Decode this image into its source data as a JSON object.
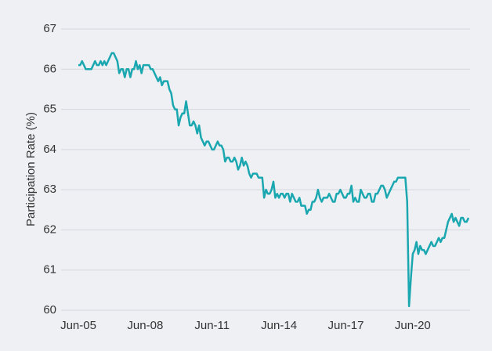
{
  "chart_data": {
    "type": "line",
    "ylabel": "Participation Rate (%)",
    "categories": [
      "Jun-05",
      null,
      null,
      null,
      null,
      null,
      null,
      null,
      null,
      null,
      null,
      null,
      null,
      null,
      null,
      null,
      null,
      null,
      null,
      null,
      null,
      null,
      null,
      null,
      null,
      null,
      null,
      null,
      null,
      null,
      null,
      null,
      null,
      null,
      null,
      null,
      "Jun-08",
      null,
      null,
      null,
      null,
      null,
      null,
      null,
      null,
      null,
      null,
      null,
      null,
      null,
      null,
      null,
      null,
      null,
      null,
      null,
      null,
      null,
      null,
      null,
      null,
      null,
      null,
      null,
      null,
      null,
      null,
      null,
      null,
      null,
      null,
      null,
      "Jun-11",
      null,
      null,
      null,
      null,
      null,
      null,
      null,
      null,
      null,
      null,
      null,
      null,
      null,
      null,
      null,
      null,
      null,
      null,
      null,
      null,
      null,
      null,
      null,
      null,
      null,
      null,
      null,
      null,
      null,
      null,
      null,
      null,
      null,
      null,
      null,
      "Jun-14",
      null,
      null,
      null,
      null,
      null,
      null,
      null,
      null,
      null,
      null,
      null,
      null,
      null,
      null,
      null,
      null,
      null,
      null,
      null,
      null,
      null,
      null,
      null,
      null,
      null,
      null,
      null,
      null,
      null,
      null,
      null,
      null,
      null,
      null,
      null,
      "Jun-17",
      null,
      null,
      null,
      null,
      null,
      null,
      null,
      null,
      null,
      null,
      null,
      null,
      null,
      null,
      null,
      null,
      null,
      null,
      null,
      null,
      null,
      null,
      null,
      null,
      null,
      null,
      null,
      null,
      null,
      null,
      null,
      null,
      null,
      null,
      null,
      "Jun-20",
      null,
      null,
      null,
      null,
      null,
      null,
      null,
      null,
      null,
      null,
      null,
      null,
      null,
      null,
      null,
      null,
      null,
      null,
      null,
      null,
      null,
      null,
      null,
      null,
      null,
      null,
      null,
      null,
      null,
      null
    ],
    "series": [
      {
        "color": "#1aa7b0",
        "values": [
          66.1,
          66.1,
          66.2,
          66.1,
          66.0,
          66.0,
          66.0,
          66.0,
          66.1,
          66.2,
          66.1,
          66.1,
          66.2,
          66.1,
          66.2,
          66.1,
          66.2,
          66.3,
          66.4,
          66.4,
          66.3,
          66.2,
          65.9,
          66.0,
          66.0,
          65.8,
          66.0,
          66.0,
          65.8,
          66.0,
          66.0,
          66.2,
          66.0,
          66.1,
          65.9,
          66.1,
          66.1,
          66.1,
          66.1,
          66.0,
          66.0,
          65.9,
          65.8,
          65.7,
          65.8,
          65.6,
          65.7,
          65.7,
          65.7,
          65.5,
          65.4,
          65.1,
          65.0,
          65.0,
          64.6,
          64.8,
          64.9,
          64.9,
          65.2,
          64.9,
          64.6,
          64.6,
          64.7,
          64.6,
          64.4,
          64.6,
          64.3,
          64.2,
          64.1,
          64.2,
          64.2,
          64.1,
          64.0,
          64.0,
          64.1,
          64.2,
          64.1,
          64.1,
          64.0,
          63.7,
          63.8,
          63.8,
          63.7,
          63.7,
          63.8,
          63.7,
          63.5,
          63.6,
          63.8,
          63.6,
          63.7,
          63.6,
          63.4,
          63.3,
          63.4,
          63.4,
          63.4,
          63.3,
          63.3,
          63.3,
          62.8,
          63.0,
          62.9,
          62.9,
          63.0,
          63.2,
          62.8,
          62.9,
          62.8,
          62.9,
          62.9,
          62.8,
          62.9,
          62.9,
          62.7,
          62.9,
          62.8,
          62.7,
          62.7,
          62.8,
          62.6,
          62.6,
          62.6,
          62.4,
          62.5,
          62.5,
          62.7,
          62.7,
          62.8,
          63.0,
          62.8,
          62.7,
          62.8,
          62.8,
          62.8,
          62.9,
          62.8,
          62.7,
          62.7,
          62.9,
          62.9,
          63.0,
          62.9,
          62.8,
          62.8,
          62.9,
          62.9,
          63.1,
          62.7,
          62.8,
          62.7,
          62.7,
          63.0,
          62.9,
          62.8,
          62.8,
          62.9,
          62.9,
          62.7,
          62.7,
          62.9,
          62.9,
          63.0,
          63.1,
          63.1,
          63.0,
          62.8,
          62.9,
          63.0,
          63.1,
          63.2,
          63.2,
          63.3,
          63.3,
          63.3,
          63.3,
          63.3,
          62.7,
          60.1,
          60.8,
          61.4,
          61.5,
          61.7,
          61.4,
          61.6,
          61.5,
          61.5,
          61.4,
          61.5,
          61.6,
          61.7,
          61.6,
          61.6,
          61.7,
          61.8,
          61.7,
          61.8,
          61.8,
          62.0,
          62.2,
          62.3,
          62.4,
          62.2,
          62.3,
          62.2,
          62.1,
          62.3,
          62.3,
          62.2,
          62.2,
          62.3
        ]
      }
    ],
    "ylim": [
      60,
      67
    ],
    "yticks": [
      60,
      61,
      62,
      63,
      64,
      65,
      66,
      67
    ],
    "grid": true
  }
}
